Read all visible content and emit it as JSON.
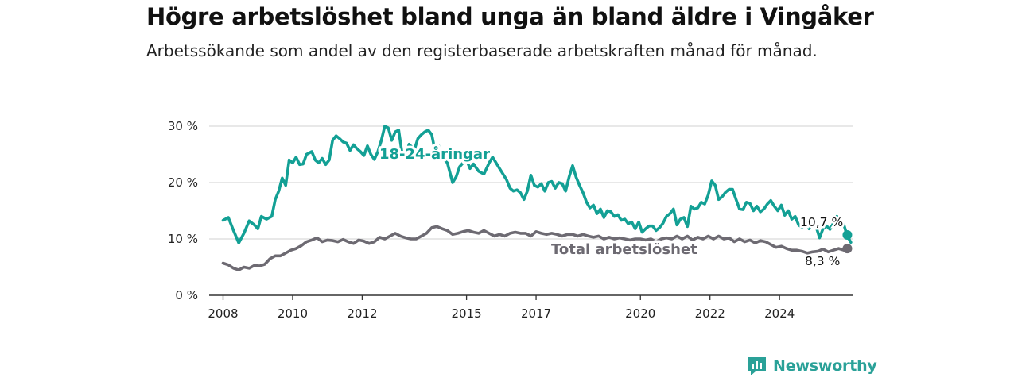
{
  "title": "Högre arbetslöshet bland unga än bland äldre i Vingåker",
  "subtitle": "Arbetssökande som andel av den registerbaserade arbetskraften månad för månad.",
  "brand": {
    "name": "Newsworthy",
    "icon": "newsworthy-logo-icon",
    "color": "#2aa198"
  },
  "chart_data": {
    "type": "line",
    "title": "Högre arbetslöshet bland unga än bland äldre i Vingåker",
    "subtitle": "Arbetssökande som andel av den registerbaserade arbetskraften månad för månad.",
    "xlabel": "",
    "ylabel": "",
    "x_ticks": [
      "2008",
      "2010",
      "2012",
      "2015",
      "2017",
      "2020",
      "2022",
      "2024"
    ],
    "y_ticks": [
      "0 %",
      "10 %",
      "20 %",
      "30 %"
    ],
    "ylim": [
      0,
      30
    ],
    "xlim": [
      2007.6,
      2026.1
    ],
    "grid": true,
    "legend": "inline labels",
    "series": [
      {
        "name": "18-24-åringar",
        "color": "#13a095",
        "end_label": "10,7 %",
        "points": [
          [
            2008.0,
            13.3
          ],
          [
            2008.15,
            13.8
          ],
          [
            2008.3,
            11.5
          ],
          [
            2008.45,
            9.3
          ],
          [
            2008.6,
            11.0
          ],
          [
            2008.75,
            13.2
          ],
          [
            2008.9,
            12.5
          ],
          [
            2009.0,
            11.8
          ],
          [
            2009.1,
            14.0
          ],
          [
            2009.25,
            13.5
          ],
          [
            2009.4,
            14.0
          ],
          [
            2009.5,
            17.0
          ],
          [
            2009.6,
            18.5
          ],
          [
            2009.7,
            20.8
          ],
          [
            2009.8,
            19.5
          ],
          [
            2009.9,
            24.0
          ],
          [
            2010.0,
            23.5
          ],
          [
            2010.1,
            24.5
          ],
          [
            2010.2,
            23.2
          ],
          [
            2010.3,
            23.3
          ],
          [
            2010.4,
            25.0
          ],
          [
            2010.55,
            25.5
          ],
          [
            2010.65,
            24.0
          ],
          [
            2010.75,
            23.5
          ],
          [
            2010.85,
            24.3
          ],
          [
            2010.95,
            23.2
          ],
          [
            2011.05,
            24.0
          ],
          [
            2011.15,
            27.5
          ],
          [
            2011.25,
            28.3
          ],
          [
            2011.35,
            27.8
          ],
          [
            2011.45,
            27.2
          ],
          [
            2011.55,
            27.0
          ],
          [
            2011.65,
            25.7
          ],
          [
            2011.75,
            26.7
          ],
          [
            2011.85,
            26.0
          ],
          [
            2011.95,
            25.5
          ],
          [
            2012.05,
            24.8
          ],
          [
            2012.15,
            26.5
          ],
          [
            2012.25,
            25.0
          ],
          [
            2012.35,
            24.1
          ],
          [
            2012.45,
            25.5
          ],
          [
            2012.55,
            27.5
          ],
          [
            2012.65,
            30.0
          ],
          [
            2012.75,
            29.7
          ],
          [
            2012.85,
            27.5
          ],
          [
            2012.95,
            29.0
          ],
          [
            2013.05,
            29.3
          ],
          [
            2013.15,
            25.0
          ],
          [
            2013.25,
            24.8
          ],
          [
            2013.35,
            26.8
          ],
          [
            2013.5,
            25.8
          ],
          [
            2013.6,
            27.8
          ],
          [
            2013.7,
            28.5
          ],
          [
            2013.8,
            29.0
          ],
          [
            2013.9,
            29.3
          ],
          [
            2014.0,
            28.5
          ],
          [
            2014.1,
            25.5
          ],
          [
            2014.2,
            26.5
          ],
          [
            2014.3,
            24.5
          ],
          [
            2014.45,
            23.5
          ],
          [
            2014.6,
            20.0
          ],
          [
            2014.7,
            21.0
          ],
          [
            2014.8,
            22.8
          ],
          [
            2014.9,
            23.5
          ],
          [
            2015.0,
            24.0
          ],
          [
            2015.1,
            22.5
          ],
          [
            2015.2,
            23.3
          ],
          [
            2015.35,
            22.0
          ],
          [
            2015.5,
            21.5
          ],
          [
            2015.65,
            23.5
          ],
          [
            2015.75,
            24.5
          ],
          [
            2015.85,
            23.5
          ],
          [
            2015.95,
            22.5
          ],
          [
            2016.05,
            21.5
          ],
          [
            2016.15,
            20.5
          ],
          [
            2016.25,
            19.0
          ],
          [
            2016.35,
            18.5
          ],
          [
            2016.45,
            18.7
          ],
          [
            2016.55,
            18.2
          ],
          [
            2016.65,
            17.0
          ],
          [
            2016.75,
            18.5
          ],
          [
            2016.85,
            21.3
          ],
          [
            2016.95,
            19.5
          ],
          [
            2017.05,
            19.2
          ],
          [
            2017.15,
            19.8
          ],
          [
            2017.25,
            18.5
          ],
          [
            2017.35,
            20.0
          ],
          [
            2017.45,
            20.2
          ],
          [
            2017.55,
            19.0
          ],
          [
            2017.65,
            20.0
          ],
          [
            2017.75,
            19.8
          ],
          [
            2017.85,
            18.5
          ],
          [
            2017.95,
            21.0
          ],
          [
            2018.05,
            23.0
          ],
          [
            2018.15,
            21.0
          ],
          [
            2018.25,
            19.5
          ],
          [
            2018.35,
            18.2
          ],
          [
            2018.45,
            16.5
          ],
          [
            2018.55,
            15.5
          ],
          [
            2018.65,
            16.0
          ],
          [
            2018.75,
            14.5
          ],
          [
            2018.85,
            15.3
          ],
          [
            2018.95,
            13.8
          ],
          [
            2019.05,
            15.0
          ],
          [
            2019.15,
            14.8
          ],
          [
            2019.25,
            14.0
          ],
          [
            2019.35,
            14.3
          ],
          [
            2019.45,
            13.3
          ],
          [
            2019.55,
            13.5
          ],
          [
            2019.65,
            12.7
          ],
          [
            2019.75,
            13.0
          ],
          [
            2019.85,
            11.8
          ],
          [
            2019.95,
            13.0
          ],
          [
            2020.05,
            11.2
          ],
          [
            2020.15,
            11.8
          ],
          [
            2020.25,
            12.3
          ],
          [
            2020.35,
            12.3
          ],
          [
            2020.45,
            11.5
          ],
          [
            2020.55,
            12.0
          ],
          [
            2020.65,
            12.8
          ],
          [
            2020.75,
            14.0
          ],
          [
            2020.85,
            14.5
          ],
          [
            2020.95,
            15.3
          ],
          [
            2021.05,
            12.5
          ],
          [
            2021.15,
            13.5
          ],
          [
            2021.25,
            13.8
          ],
          [
            2021.35,
            12.2
          ],
          [
            2021.45,
            15.8
          ],
          [
            2021.55,
            15.3
          ],
          [
            2021.65,
            15.5
          ],
          [
            2021.75,
            16.5
          ],
          [
            2021.85,
            16.2
          ],
          [
            2021.95,
            17.8
          ],
          [
            2022.05,
            20.3
          ],
          [
            2022.15,
            19.5
          ],
          [
            2022.25,
            17.0
          ],
          [
            2022.35,
            17.5
          ],
          [
            2022.45,
            18.3
          ],
          [
            2022.55,
            18.8
          ],
          [
            2022.65,
            18.8
          ],
          [
            2022.75,
            17.0
          ],
          [
            2022.85,
            15.3
          ],
          [
            2022.95,
            15.2
          ],
          [
            2023.05,
            16.5
          ],
          [
            2023.15,
            16.3
          ],
          [
            2023.25,
            15.0
          ],
          [
            2023.35,
            15.8
          ],
          [
            2023.45,
            14.8
          ],
          [
            2023.55,
            15.3
          ],
          [
            2023.65,
            16.2
          ],
          [
            2023.75,
            16.8
          ],
          [
            2023.85,
            15.8
          ],
          [
            2023.95,
            15.0
          ],
          [
            2024.05,
            16.0
          ],
          [
            2024.15,
            14.2
          ],
          [
            2024.25,
            15.0
          ],
          [
            2024.35,
            13.5
          ],
          [
            2024.45,
            14.0
          ],
          [
            2024.55,
            12.5
          ],
          [
            2024.65,
            12.0
          ],
          [
            2024.75,
            13.2
          ],
          [
            2024.85,
            11.8
          ],
          [
            2024.95,
            12.8
          ],
          [
            2025.05,
            12.2
          ],
          [
            2025.15,
            10.2
          ],
          [
            2025.25,
            11.8
          ],
          [
            2025.35,
            12.3
          ],
          [
            2025.45,
            11.7
          ],
          [
            2025.55,
            12.8
          ],
          [
            2025.65,
            14.0
          ],
          [
            2025.75,
            13.0
          ],
          [
            2025.85,
            12.5
          ],
          [
            2025.95,
            10.5
          ],
          [
            2026.05,
            9.4
          ]
        ],
        "end_point": [
          2025.95,
          10.7
        ]
      },
      {
        "name": "Total arbetslöshet",
        "color": "#6d6a72",
        "end_label": "8,3 %",
        "points": [
          [
            2008.0,
            5.7
          ],
          [
            2008.15,
            5.4
          ],
          [
            2008.3,
            4.8
          ],
          [
            2008.45,
            4.5
          ],
          [
            2008.6,
            5.0
          ],
          [
            2008.75,
            4.8
          ],
          [
            2008.9,
            5.3
          ],
          [
            2009.05,
            5.2
          ],
          [
            2009.2,
            5.5
          ],
          [
            2009.35,
            6.5
          ],
          [
            2009.5,
            7.0
          ],
          [
            2009.65,
            7.0
          ],
          [
            2009.8,
            7.5
          ],
          [
            2009.95,
            8.0
          ],
          [
            2010.1,
            8.3
          ],
          [
            2010.25,
            8.8
          ],
          [
            2010.4,
            9.5
          ],
          [
            2010.55,
            9.8
          ],
          [
            2010.7,
            10.2
          ],
          [
            2010.85,
            9.5
          ],
          [
            2011.0,
            9.8
          ],
          [
            2011.15,
            9.7
          ],
          [
            2011.3,
            9.5
          ],
          [
            2011.45,
            9.9
          ],
          [
            2011.6,
            9.5
          ],
          [
            2011.75,
            9.2
          ],
          [
            2011.9,
            9.8
          ],
          [
            2012.05,
            9.6
          ],
          [
            2012.2,
            9.2
          ],
          [
            2012.35,
            9.5
          ],
          [
            2012.5,
            10.3
          ],
          [
            2012.65,
            10.0
          ],
          [
            2012.8,
            10.5
          ],
          [
            2012.95,
            11.0
          ],
          [
            2013.1,
            10.5
          ],
          [
            2013.25,
            10.2
          ],
          [
            2013.4,
            10.0
          ],
          [
            2013.55,
            10.0
          ],
          [
            2013.7,
            10.5
          ],
          [
            2013.85,
            11.0
          ],
          [
            2014.0,
            12.0
          ],
          [
            2014.15,
            12.2
          ],
          [
            2014.3,
            11.8
          ],
          [
            2014.45,
            11.5
          ],
          [
            2014.6,
            10.8
          ],
          [
            2014.75,
            11.0
          ],
          [
            2014.9,
            11.3
          ],
          [
            2015.05,
            11.5
          ],
          [
            2015.2,
            11.2
          ],
          [
            2015.35,
            11.0
          ],
          [
            2015.5,
            11.5
          ],
          [
            2015.65,
            11.0
          ],
          [
            2015.8,
            10.5
          ],
          [
            2015.95,
            10.8
          ],
          [
            2016.1,
            10.5
          ],
          [
            2016.25,
            11.0
          ],
          [
            2016.4,
            11.2
          ],
          [
            2016.55,
            11.0
          ],
          [
            2016.7,
            11.0
          ],
          [
            2016.85,
            10.5
          ],
          [
            2017.0,
            11.3
          ],
          [
            2017.15,
            11.0
          ],
          [
            2017.3,
            10.8
          ],
          [
            2017.45,
            11.0
          ],
          [
            2017.6,
            10.8
          ],
          [
            2017.75,
            10.5
          ],
          [
            2017.9,
            10.8
          ],
          [
            2018.05,
            10.8
          ],
          [
            2018.2,
            10.5
          ],
          [
            2018.35,
            10.8
          ],
          [
            2018.5,
            10.5
          ],
          [
            2018.65,
            10.3
          ],
          [
            2018.8,
            10.5
          ],
          [
            2018.95,
            10.0
          ],
          [
            2019.1,
            10.3
          ],
          [
            2019.25,
            10.0
          ],
          [
            2019.4,
            10.2
          ],
          [
            2019.55,
            10.0
          ],
          [
            2019.7,
            9.8
          ],
          [
            2019.85,
            10.0
          ],
          [
            2020.0,
            10.0
          ],
          [
            2020.15,
            9.8
          ],
          [
            2020.3,
            10.0
          ],
          [
            2020.45,
            9.5
          ],
          [
            2020.6,
            10.0
          ],
          [
            2020.75,
            10.2
          ],
          [
            2020.9,
            10.0
          ],
          [
            2021.05,
            10.5
          ],
          [
            2021.2,
            10.0
          ],
          [
            2021.35,
            10.5
          ],
          [
            2021.5,
            9.8
          ],
          [
            2021.65,
            10.3
          ],
          [
            2021.8,
            10.0
          ],
          [
            2021.95,
            10.5
          ],
          [
            2022.1,
            10.0
          ],
          [
            2022.25,
            10.5
          ],
          [
            2022.4,
            10.0
          ],
          [
            2022.55,
            10.2
          ],
          [
            2022.7,
            9.5
          ],
          [
            2022.85,
            10.0
          ],
          [
            2023.0,
            9.5
          ],
          [
            2023.15,
            9.8
          ],
          [
            2023.3,
            9.3
          ],
          [
            2023.45,
            9.7
          ],
          [
            2023.6,
            9.5
          ],
          [
            2023.75,
            9.0
          ],
          [
            2023.9,
            8.5
          ],
          [
            2024.05,
            8.7
          ],
          [
            2024.2,
            8.3
          ],
          [
            2024.35,
            8.0
          ],
          [
            2024.5,
            8.0
          ],
          [
            2024.65,
            7.8
          ],
          [
            2024.8,
            7.5
          ],
          [
            2024.95,
            7.7
          ],
          [
            2025.1,
            7.8
          ],
          [
            2025.25,
            8.2
          ],
          [
            2025.4,
            7.7
          ],
          [
            2025.55,
            8.0
          ],
          [
            2025.7,
            8.3
          ],
          [
            2025.85,
            8.0
          ]
        ],
        "end_point": [
          2025.95,
          8.3
        ]
      }
    ]
  }
}
